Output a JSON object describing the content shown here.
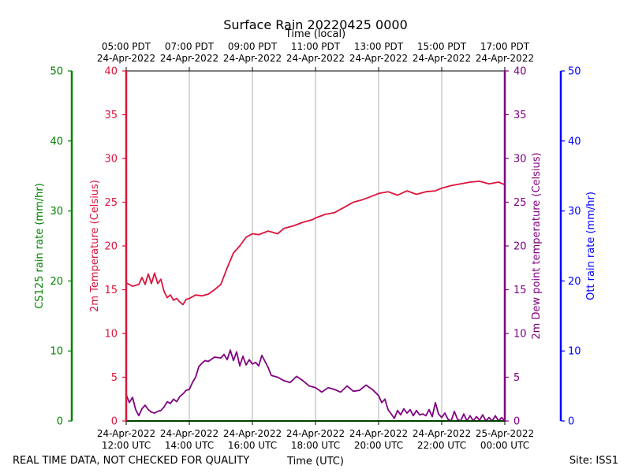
{
  "chart_data": {
    "type": "line",
    "title": "Surface Rain 20220425 0000",
    "top_axis_label": "Time (local)",
    "xlabel": "Time (UTC)",
    "footer_left": "REAL TIME DATA, NOT CHECKED FOR QUALITY",
    "footer_right": "Site: ISS1",
    "x_range_hours": [
      12,
      24
    ],
    "bottom_ticks": [
      {
        "hour": 12,
        "line1": "24-Apr-2022",
        "line2": "12:00 UTC"
      },
      {
        "hour": 14,
        "line1": "24-Apr-2022",
        "line2": "14:00 UTC"
      },
      {
        "hour": 16,
        "line1": "24-Apr-2022",
        "line2": "16:00 UTC"
      },
      {
        "hour": 18,
        "line1": "24-Apr-2022",
        "line2": "18:00 UTC"
      },
      {
        "hour": 20,
        "line1": "24-Apr-2022",
        "line2": "20:00 UTC"
      },
      {
        "hour": 22,
        "line1": "24-Apr-2022",
        "line2": "22:00 UTC"
      },
      {
        "hour": 24,
        "line1": "25-Apr-2022",
        "line2": "00:00 UTC"
      }
    ],
    "top_ticks": [
      {
        "hour": 12,
        "line1": "05:00 PDT",
        "line2": "24-Apr-2022"
      },
      {
        "hour": 14,
        "line1": "07:00 PDT",
        "line2": "24-Apr-2022"
      },
      {
        "hour": 16,
        "line1": "09:00 PDT",
        "line2": "24-Apr-2022"
      },
      {
        "hour": 18,
        "line1": "11:00 PDT",
        "line2": "24-Apr-2022"
      },
      {
        "hour": 20,
        "line1": "13:00 PDT",
        "line2": "24-Apr-2022"
      },
      {
        "hour": 22,
        "line1": "15:00 PDT",
        "line2": "24-Apr-2022"
      },
      {
        "hour": 24,
        "line1": "17:00 PDT",
        "line2": "24-Apr-2022"
      }
    ],
    "axes": {
      "cs125": {
        "label": "CS125 rain rate (mm/hr)",
        "range": [
          0,
          50
        ],
        "ticks": [
          "0",
          "10",
          "20",
          "30",
          "40",
          "50"
        ],
        "color": "#008000"
      },
      "temperature": {
        "label": "2m Temperature (Celsius)",
        "range": [
          0,
          40
        ],
        "ticks": [
          "0",
          "5",
          "10",
          "15",
          "20",
          "25",
          "30",
          "35",
          "40"
        ],
        "color": "#dc143c"
      },
      "dewpoint": {
        "label": "2m Dew point temperature (Celsius)",
        "range": [
          0,
          40
        ],
        "ticks": [
          "0",
          "5",
          "10",
          "15",
          "20",
          "25",
          "30",
          "35",
          "40"
        ],
        "color": "#800080"
      },
      "ott": {
        "label": "Ott rain rate (mm/hr)",
        "range": [
          0,
          50
        ],
        "ticks": [
          "0",
          "10",
          "20",
          "30",
          "40",
          "50"
        ],
        "color": "#0000ff"
      }
    },
    "series": [
      {
        "name": "2m Temperature",
        "axis": "temperature",
        "color": "#dc143c",
        "x": [
          12.0,
          12.2,
          12.4,
          12.5,
          12.6,
          12.7,
          12.8,
          12.9,
          13.0,
          13.1,
          13.2,
          13.3,
          13.4,
          13.5,
          13.6,
          13.7,
          13.8,
          13.9,
          14.0,
          14.2,
          14.4,
          14.6,
          14.8,
          15.0,
          15.2,
          15.4,
          15.6,
          15.8,
          16.0,
          16.2,
          16.5,
          16.8,
          17.0,
          17.3,
          17.6,
          17.9,
          18.0,
          18.3,
          18.6,
          18.9,
          19.2,
          19.5,
          19.8,
          20.0,
          20.3,
          20.6,
          20.9,
          21.2,
          21.5,
          21.8,
          22.0,
          22.3,
          22.6,
          22.9,
          23.2,
          23.5,
          23.8,
          24.0
        ],
        "values": [
          15.8,
          15.4,
          15.6,
          16.4,
          15.6,
          16.8,
          15.7,
          16.9,
          15.7,
          16.2,
          14.8,
          14.1,
          14.4,
          13.8,
          14.0,
          13.6,
          13.3,
          13.9,
          14.0,
          14.4,
          14.3,
          14.5,
          15.0,
          15.6,
          17.5,
          19.2,
          20.0,
          21.0,
          21.4,
          21.3,
          21.7,
          21.4,
          22.0,
          22.3,
          22.7,
          23.0,
          23.2,
          23.6,
          23.8,
          24.4,
          25.0,
          25.3,
          25.7,
          26.0,
          26.2,
          25.8,
          26.3,
          25.9,
          26.2,
          26.3,
          26.6,
          26.9,
          27.1,
          27.3,
          27.4,
          27.1,
          27.3,
          27.0
        ]
      },
      {
        "name": "2m Dew point temperature",
        "axis": "dewpoint",
        "color": "#800080",
        "x": [
          12.0,
          12.1,
          12.2,
          12.3,
          12.4,
          12.5,
          12.6,
          12.7,
          12.8,
          12.9,
          13.0,
          13.1,
          13.2,
          13.3,
          13.4,
          13.5,
          13.6,
          13.7,
          13.8,
          13.9,
          14.0,
          14.1,
          14.2,
          14.3,
          14.4,
          14.5,
          14.6,
          14.8,
          15.0,
          15.1,
          15.2,
          15.3,
          15.4,
          15.5,
          15.6,
          15.7,
          15.8,
          15.9,
          16.0,
          16.1,
          16.2,
          16.3,
          16.4,
          16.5,
          16.6,
          16.8,
          16.9,
          17.0,
          17.2,
          17.4,
          17.6,
          17.8,
          18.0,
          18.2,
          18.4,
          18.6,
          18.8,
          19.0,
          19.2,
          19.4,
          19.6,
          19.8,
          20.0,
          20.1,
          20.2,
          20.3,
          20.4,
          20.5,
          20.6,
          20.7,
          20.8,
          20.9,
          21.0,
          21.1,
          21.2,
          21.3,
          21.4,
          21.5,
          21.6,
          21.7,
          21.8,
          21.9,
          22.0,
          22.1,
          22.2,
          22.3,
          22.4,
          22.5,
          22.6,
          22.7,
          22.8,
          22.9,
          23.0,
          23.1,
          23.2,
          23.3,
          23.4,
          23.5,
          23.6,
          23.7,
          23.8,
          23.9,
          24.0
        ],
        "values": [
          3.0,
          2.1,
          2.7,
          1.3,
          0.6,
          1.4,
          1.8,
          1.3,
          1.0,
          0.9,
          1.1,
          1.2,
          1.6,
          2.2,
          2.0,
          2.5,
          2.2,
          2.8,
          3.1,
          3.5,
          3.6,
          4.4,
          5.0,
          6.2,
          6.6,
          6.9,
          6.8,
          7.3,
          7.2,
          7.6,
          7.0,
          8.1,
          6.9,
          7.9,
          6.3,
          7.4,
          6.4,
          7.0,
          6.5,
          6.7,
          6.3,
          7.5,
          6.8,
          6.1,
          5.2,
          5.0,
          4.8,
          4.6,
          4.4,
          5.1,
          4.6,
          4.0,
          3.8,
          3.3,
          3.8,
          3.6,
          3.3,
          4.0,
          3.4,
          3.5,
          4.1,
          3.6,
          2.9,
          2.1,
          2.5,
          1.3,
          0.8,
          0.3,
          1.2,
          0.7,
          1.4,
          0.9,
          1.3,
          0.6,
          1.2,
          0.7,
          0.8,
          0.6,
          1.3,
          0.5,
          2.1,
          0.8,
          0.4,
          0.9,
          0.2,
          0.0,
          1.1,
          0.2,
          0.0,
          0.8,
          0.0,
          0.6,
          0.0,
          0.5,
          0.1,
          0.7,
          0.0,
          0.4,
          0.0,
          0.6,
          0.0,
          0.4,
          0.0
        ]
      },
      {
        "name": "CS125 rain rate",
        "axis": "cs125",
        "color": "#008000",
        "x": [
          12,
          24
        ],
        "values": [
          0,
          0
        ]
      }
    ]
  }
}
